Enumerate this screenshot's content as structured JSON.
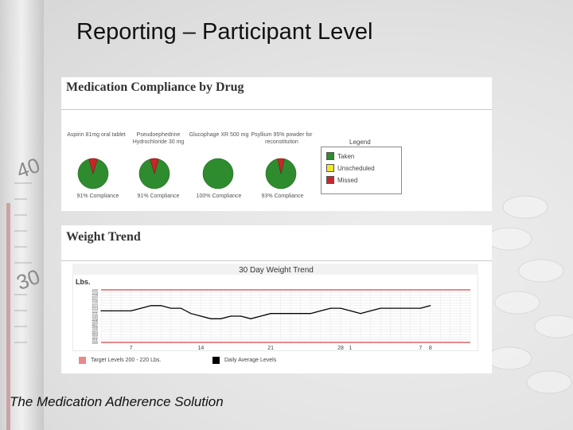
{
  "slide": {
    "title": "Reporting – Participant Level",
    "footer": "The Medication Adherence Solution"
  },
  "background": {
    "thermometer_marks": [
      "40",
      "30"
    ]
  },
  "compliance": {
    "heading": "Medication Compliance by Drug",
    "legend": {
      "title": "Legend",
      "items": [
        {
          "label": "Taken",
          "color": "#2e8b2e"
        },
        {
          "label": "Unscheduled",
          "color": "#f2e82a"
        },
        {
          "label": "Missed",
          "color": "#c8262b"
        }
      ]
    },
    "drugs": [
      {
        "name": "Aspirin 81mg oral tablet",
        "caption": "91% Compliance",
        "taken": 0.91,
        "missed": 0.09
      },
      {
        "name": "Pseudoephedrine Hydrochloride 30 mg",
        "caption": "91% Compliance",
        "taken": 0.91,
        "missed": 0.09
      },
      {
        "name": "Glucophage XR 500 mg",
        "caption": "100% Compliance",
        "taken": 1.0,
        "missed": 0.0
      },
      {
        "name": "Psyllium 95% powder for reconstitution",
        "caption": "93% Compliance",
        "taken": 0.93,
        "missed": 0.07
      }
    ]
  },
  "weight": {
    "heading": "Weight Trend",
    "chart_title": "30 Day Weight Trend",
    "y_unit": "Lbs.",
    "legend_target": "Target Levels 200 - 220 Lbs.",
    "legend_daily": "Daily Average Levels",
    "target_color": "#e8898b",
    "line_color": "#000000"
  },
  "chart_data": {
    "type": "line",
    "title": "30 Day Weight Trend",
    "ylabel": "Lbs.",
    "ylim": [
      200,
      220
    ],
    "yticks": [
      220,
      219,
      218,
      217,
      216,
      215,
      214,
      213,
      212,
      211,
      210,
      209,
      208,
      207,
      206,
      205,
      204,
      203,
      202,
      201,
      200
    ],
    "xlim": [
      1,
      38
    ],
    "xticks": [
      {
        "x": 4,
        "label": "7"
      },
      {
        "x": 11,
        "label": "14"
      },
      {
        "x": 18,
        "label": "21"
      },
      {
        "x": 25,
        "label": "28"
      },
      {
        "x": 26,
        "label": "1"
      },
      {
        "x": 33,
        "label": "7"
      },
      {
        "x": 34,
        "label": "8"
      }
    ],
    "target_range": [
      200,
      220
    ],
    "series": [
      {
        "name": "Daily Average Levels",
        "x": [
          1,
          2,
          3,
          4,
          5,
          6,
          7,
          8,
          9,
          10,
          11,
          12,
          13,
          14,
          15,
          16,
          17,
          18,
          19,
          20,
          21,
          22,
          23,
          24,
          25,
          26,
          27,
          28,
          29,
          30,
          31,
          32,
          33,
          34
        ],
        "values": [
          212,
          212,
          212,
          212,
          213,
          214,
          214,
          213,
          213,
          211,
          210,
          209,
          209,
          210,
          210,
          209,
          210,
          211,
          211,
          211,
          211,
          211,
          212,
          213,
          213,
          212,
          211,
          212,
          213,
          213,
          213,
          213,
          213,
          214
        ]
      }
    ]
  }
}
